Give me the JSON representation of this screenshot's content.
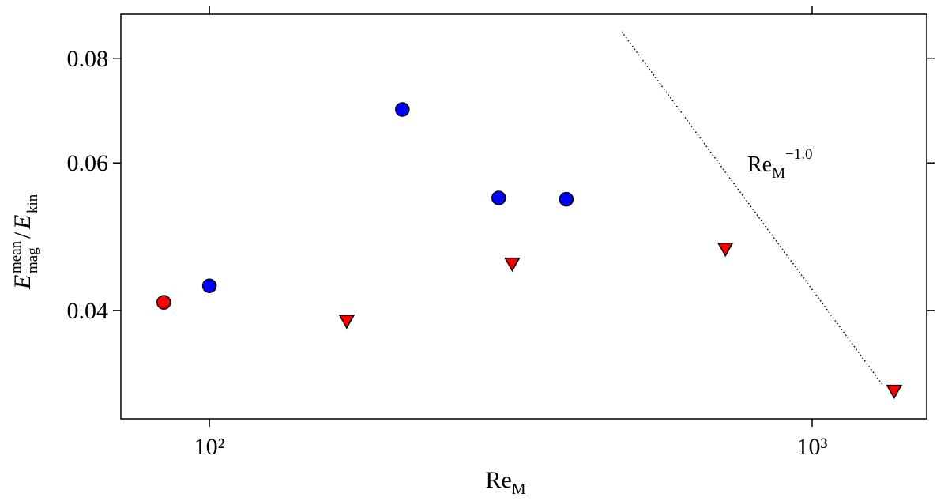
{
  "chart_data": {
    "type": "scatter",
    "xlabel": {
      "base": "Re",
      "sub": "M"
    },
    "ylabel": {
      "num": "E",
      "num_sup": "mean",
      "num_sub": "mag",
      "slash": "/",
      "den": "E",
      "den_sub": "kin"
    },
    "xlog": true,
    "ylog": true,
    "xlim": [
      71.3,
      1549
    ],
    "ylim": [
      0.0297,
      0.0903
    ],
    "xticks": [
      {
        "value": 100,
        "label": "10²"
      },
      {
        "value": 1000,
        "label": "10³"
      }
    ],
    "yticks": [
      0.04,
      0.06,
      0.08
    ],
    "series": [
      {
        "color": "#ff0000",
        "marker": "circle",
        "x": [
          84
        ],
        "values": [
          0.0409
        ]
      },
      {
        "color": "#0000ff",
        "marker": "circle",
        "x": [
          100,
          209,
          302,
          391
        ],
        "values": [
          0.0428,
          0.0695,
          0.0545,
          0.0543
        ]
      },
      {
        "color": "#ff0000",
        "marker": "triangle",
        "x": [
          169,
          318,
          718,
          1368
        ],
        "values": [
          0.0388,
          0.0454,
          0.0473,
          0.032
        ]
      }
    ],
    "reference_line": {
      "x": [
        483,
        1313
      ],
      "values": [
        0.0861,
        0.0325
      ],
      "color": "#000000",
      "style": "dotted",
      "label": {
        "base": "Re",
        "sub": "M",
        "sup": "−1.0"
      }
    }
  }
}
